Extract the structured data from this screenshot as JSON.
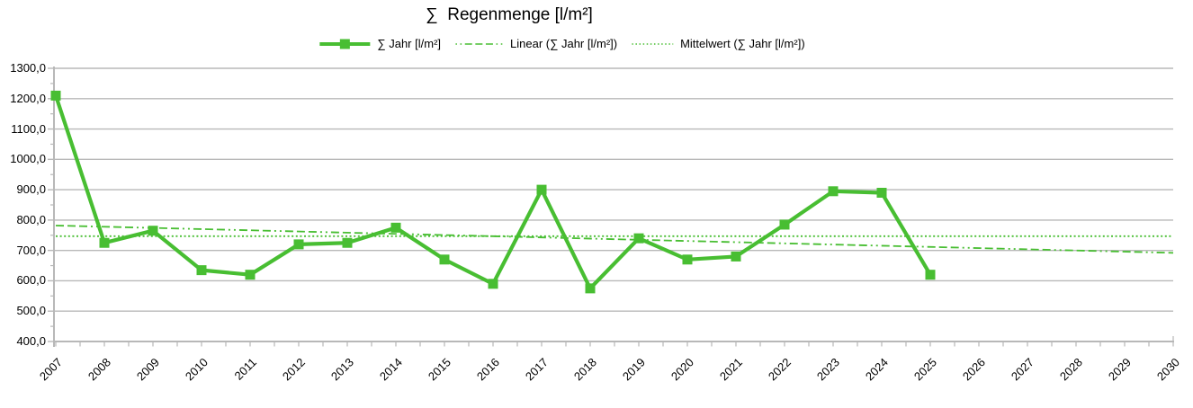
{
  "title": "∑  Regenmenge [l/m²]",
  "legend": [
    {
      "label": "∑ Jahr [l/m²]",
      "style": "solid-line-with-square-marker"
    },
    {
      "label": "Linear (∑ Jahr [l/m²])",
      "style": "dash-dot-dot-line"
    },
    {
      "label": "Mittelwert (∑ Jahr [l/m²])",
      "style": "dotted-line"
    }
  ],
  "colors": {
    "series_green": "#48be32",
    "grid_gray": "#b8b8b8",
    "text": "#000000",
    "background": "#ffffff"
  },
  "chart_data": {
    "type": "line",
    "title": "∑ Regenmenge [l/m²]",
    "xlabel": "",
    "ylabel": "",
    "ylim": [
      400,
      1300
    ],
    "y_tick_step": 100,
    "y_minor_tick_step": 50,
    "y_tick_label_style": "comma decimal, e.g. 1300,0",
    "x_categories": [
      "2007",
      "2008",
      "2009",
      "2010",
      "2011",
      "2012",
      "2013",
      "2014",
      "2015",
      "2016",
      "2017",
      "2018",
      "2019",
      "2020",
      "2021",
      "2022",
      "2023",
      "2024",
      "2025",
      "2026",
      "2027",
      "2028",
      "2029",
      "2030"
    ],
    "grid": "horizontal-major",
    "legend_position": "top-center",
    "series": [
      {
        "name": "∑ Jahr [l/m²]",
        "type": "line-with-square-markers",
        "years": [
          2007,
          2008,
          2009,
          2010,
          2011,
          2012,
          2013,
          2014,
          2015,
          2016,
          2017,
          2018,
          2019,
          2020,
          2021,
          2022,
          2023,
          2024,
          2025
        ],
        "values": [
          1210,
          725,
          765,
          635,
          620,
          720,
          725,
          775,
          670,
          590,
          900,
          575,
          740,
          670,
          680,
          785,
          895,
          890,
          620
        ]
      },
      {
        "name": "Linear (∑ Jahr [l/m²])",
        "type": "linear-trend",
        "years": [
          2007,
          2030
        ],
        "values": [
          782,
          692
        ]
      },
      {
        "name": "Mittelwert (∑ Jahr [l/m²])",
        "type": "mean-line",
        "years": [
          2007,
          2030
        ],
        "values": [
          747,
          747
        ]
      }
    ]
  }
}
